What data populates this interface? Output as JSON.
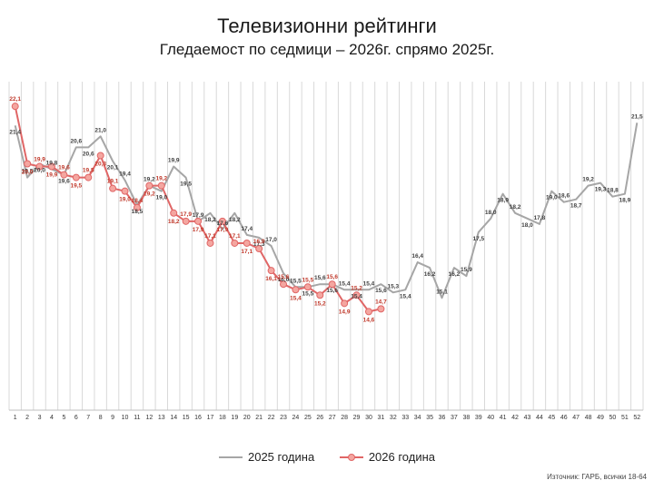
{
  "title": "Телевизионни рейтинги",
  "subtitle": "Гледаемост по седмици – 2026г. спрямо 2025г.",
  "source": "Източник: ГАРБ, всички 18-64",
  "colors": {
    "series_2025": "#a6a6a6",
    "series_2026": "#e06666",
    "marker_2026": "#f4a6a0",
    "label_2025": "#404040",
    "label_2026": "#c0392b",
    "grid": "#d9d9d9"
  },
  "chart_data": {
    "type": "line",
    "title": "Телевизионни рейтинги",
    "subtitle": "Гледаемост по седмици – 2026г. спрямо 2025г.",
    "x": [
      1,
      2,
      3,
      4,
      5,
      6,
      7,
      8,
      9,
      10,
      11,
      12,
      13,
      14,
      15,
      16,
      17,
      18,
      19,
      20,
      21,
      22,
      23,
      24,
      25,
      26,
      27,
      28,
      29,
      30,
      31,
      32,
      33,
      34,
      35,
      36,
      37,
      38,
      39,
      40,
      41,
      42,
      43,
      44,
      45,
      46,
      47,
      48,
      49,
      50,
      51,
      52
    ],
    "ylim": [
      11,
      23
    ],
    "grid": "vertical",
    "legend_position": "bottom",
    "series": [
      {
        "name": "2025 година",
        "values": [
          21.4,
          19.5,
          20.0,
          19.8,
          19.6,
          20.6,
          20.6,
          21.0,
          20.1,
          19.4,
          18.5,
          19.2,
          19.0,
          19.9,
          19.5,
          17.9,
          18.2,
          17.6,
          18.2,
          17.4,
          17.3,
          17.0,
          16.0,
          15.5,
          15.5,
          15.6,
          15.6,
          15.4,
          15.4,
          15.4,
          15.6,
          15.3,
          15.4,
          16.4,
          16.2,
          15.1,
          16.2,
          15.9,
          17.5,
          18.0,
          18.9,
          18.2,
          18.0,
          17.8,
          19.0,
          18.6,
          18.7,
          19.2,
          19.3,
          18.8,
          18.9,
          21.5
        ]
      },
      {
        "name": "2026 година",
        "values": [
          22.1,
          20.0,
          19.9,
          19.9,
          19.6,
          19.5,
          19.5,
          20.3,
          19.1,
          19.0,
          18.4,
          19.2,
          19.2,
          18.2,
          17.9,
          17.9,
          17.1,
          17.9,
          17.1,
          17.1,
          16.9,
          16.1,
          15.6,
          15.4,
          15.5,
          15.2,
          15.6,
          14.9,
          15.2,
          14.6,
          14.7,
          null,
          null,
          null,
          null,
          null,
          null,
          null,
          null,
          null,
          null,
          null,
          null,
          null,
          null,
          null,
          null,
          null,
          null,
          null,
          null,
          null
        ]
      }
    ],
    "labels_2025": [
      "21,4",
      "19,5",
      "20,0",
      "19,8",
      "19,6",
      "20,6",
      "20,6",
      "21,0",
      "20,1",
      "19,4",
      "18,5",
      "19,2",
      "19,0",
      "19,9",
      "19,5",
      "17,9",
      "18,2",
      "17,6",
      "18,2",
      "17,4",
      "17,3",
      "17,0",
      "16,0",
      "15,5",
      "15,5",
      "15,6",
      "15,6",
      "15,4",
      "15,4",
      "15,4",
      "15,6",
      "15,3",
      "15,4",
      "16,4",
      "16,2",
      "15,1",
      "16,2",
      "15,9",
      "17,5",
      "18,0",
      "18,9",
      "18,2",
      "18,0",
      "17,8",
      "19,0",
      "18,6",
      "18,7",
      "19,2",
      "19,3",
      "18,8",
      "18,9",
      "21,5"
    ],
    "labels_2026": [
      "22,1",
      "20,0",
      "19,9",
      "19,9",
      "19,6",
      "19,5",
      "19,5",
      "20,3",
      "19,1",
      "19,0",
      "18,4",
      "19,2",
      "19,2",
      "18,2",
      "17,9",
      "17,9",
      "17,1",
      "17,9",
      "17,1",
      "17,1",
      "16,9",
      "16,1",
      "15,6",
      "15,4",
      "15,5",
      "15,2",
      "15,6",
      "14,9",
      "15,2",
      "14,6",
      "14,7"
    ]
  }
}
